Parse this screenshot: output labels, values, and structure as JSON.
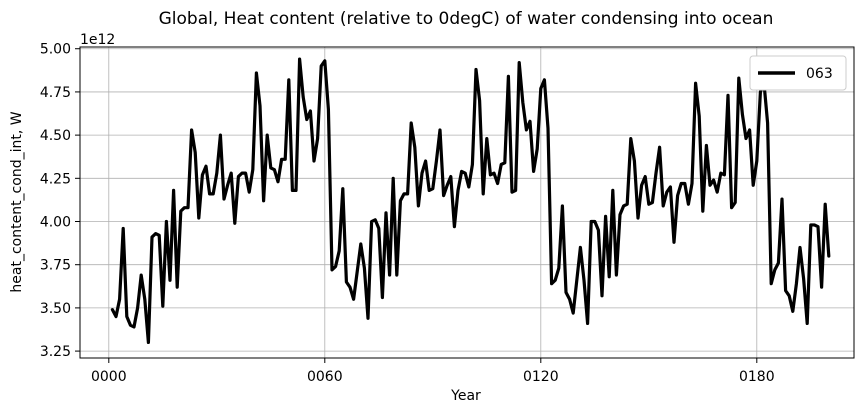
{
  "chart_data": {
    "type": "line",
    "title": "Global, Heat content (relative to 0degC) of water condensing into ocean",
    "xlabel": "Year",
    "ylabel": "heat_content_cond_int, W",
    "y_offset_label": "1e12",
    "xlim": [
      -8,
      207
    ],
    "ylim": [
      3.21,
      5.01
    ],
    "x_ticks": [
      0,
      60,
      120,
      180
    ],
    "x_tick_labels": [
      "0000",
      "0060",
      "0120",
      "0180"
    ],
    "y_ticks": [
      3.25,
      3.5,
      3.75,
      4.0,
      4.25,
      4.5,
      4.75,
      5.0
    ],
    "y_tick_labels": [
      "3.25",
      "3.50",
      "3.75",
      "4.00",
      "4.25",
      "4.50",
      "4.75",
      "5.00"
    ],
    "grid": true,
    "legend_position": "top-right",
    "series": [
      {
        "name": "063",
        "color": "#000000",
        "x": [
          1,
          2,
          3,
          4,
          5,
          6,
          7,
          8,
          9,
          10,
          11,
          12,
          13,
          14,
          15,
          16,
          17,
          18,
          19,
          20,
          21,
          22,
          23,
          24,
          25,
          26,
          27,
          28,
          29,
          30,
          31,
          32,
          33,
          34,
          35,
          36,
          37,
          38,
          39,
          40,
          41,
          42,
          43,
          44,
          45,
          46,
          47,
          48,
          49,
          50,
          51,
          52,
          53,
          54,
          55,
          56,
          57,
          58,
          59,
          60,
          61,
          62,
          63,
          64,
          65,
          66,
          67,
          68,
          69,
          70,
          71,
          72,
          73,
          74,
          75,
          76,
          77,
          78,
          79,
          80,
          81,
          82,
          83,
          84,
          85,
          86,
          87,
          88,
          89,
          90,
          91,
          92,
          93,
          94,
          95,
          96,
          97,
          98,
          99,
          100,
          101,
          102,
          103,
          104,
          105,
          106,
          107,
          108,
          109,
          110,
          111,
          112,
          113,
          114,
          115,
          116,
          117,
          118,
          119,
          120,
          121,
          122,
          123,
          124,
          125,
          126,
          127,
          128,
          129,
          130,
          131,
          132,
          133,
          134,
          135,
          136,
          137,
          138,
          139,
          140,
          141,
          142,
          143,
          144,
          145,
          146,
          147,
          148,
          149,
          150,
          151,
          152,
          153,
          154,
          155,
          156,
          157,
          158,
          159,
          160,
          161,
          162,
          163,
          164,
          165,
          166,
          167,
          168,
          169,
          170,
          171,
          172,
          173,
          174,
          175,
          176,
          177,
          178,
          179,
          180,
          181,
          182,
          183,
          184,
          185,
          186,
          187,
          188,
          189,
          190,
          191,
          192,
          193,
          194,
          195,
          196,
          197,
          198,
          199,
          200
        ],
        "values": [
          3.49,
          3.45,
          3.55,
          3.96,
          3.45,
          3.4,
          3.39,
          3.5,
          3.69,
          3.55,
          3.3,
          3.91,
          3.93,
          3.92,
          3.51,
          4.0,
          3.66,
          4.18,
          3.62,
          4.06,
          4.08,
          4.08,
          4.53,
          4.4,
          4.02,
          4.27,
          4.32,
          4.16,
          4.16,
          4.28,
          4.5,
          4.13,
          4.21,
          4.28,
          3.99,
          4.26,
          4.28,
          4.28,
          4.17,
          4.3,
          4.86,
          4.67,
          4.12,
          4.5,
          4.31,
          4.3,
          4.23,
          4.36,
          4.36,
          4.82,
          4.18,
          4.18,
          4.94,
          4.72,
          4.59,
          4.64,
          4.35,
          4.48,
          4.9,
          4.93,
          4.65,
          3.72,
          3.74,
          3.83,
          4.19,
          3.65,
          3.62,
          3.55,
          3.71,
          3.87,
          3.73,
          3.44,
          4.0,
          4.01,
          3.96,
          3.56,
          4.05,
          3.69,
          4.25,
          3.69,
          4.12,
          4.16,
          4.16,
          4.57,
          4.43,
          4.09,
          4.28,
          4.35,
          4.18,
          4.19,
          4.35,
          4.53,
          4.15,
          4.21,
          4.26,
          3.97,
          4.18,
          4.29,
          4.28,
          4.2,
          4.33,
          4.88,
          4.7,
          4.16,
          4.48,
          4.27,
          4.28,
          4.22,
          4.33,
          4.34,
          4.84,
          4.17,
          4.18,
          4.92,
          4.69,
          4.53,
          4.58,
          4.29,
          4.42,
          4.77,
          4.82,
          4.54,
          3.64,
          3.66,
          3.73,
          4.09,
          3.59,
          3.55,
          3.47,
          3.66,
          3.85,
          3.66,
          3.41,
          4.0,
          4.0,
          3.95,
          3.57,
          4.03,
          3.68,
          4.18,
          3.69,
          4.04,
          4.09,
          4.1,
          4.48,
          4.35,
          4.02,
          4.21,
          4.26,
          4.1,
          4.11,
          4.28,
          4.43,
          4.09,
          4.17,
          4.2,
          3.88,
          4.15,
          4.22,
          4.22,
          4.1,
          4.22,
          4.8,
          4.61,
          4.06,
          4.44,
          4.21,
          4.24,
          4.17,
          4.28,
          4.27,
          4.73,
          4.08,
          4.11,
          4.83,
          4.62,
          4.48,
          4.53,
          4.21,
          4.35,
          4.75,
          4.8,
          4.57,
          3.64,
          3.72,
          3.76,
          4.13,
          3.6,
          3.57,
          3.48,
          3.64,
          3.85,
          3.67,
          3.41,
          3.98,
          3.98,
          3.97,
          3.62,
          4.1,
          3.8
        ]
      }
    ]
  }
}
